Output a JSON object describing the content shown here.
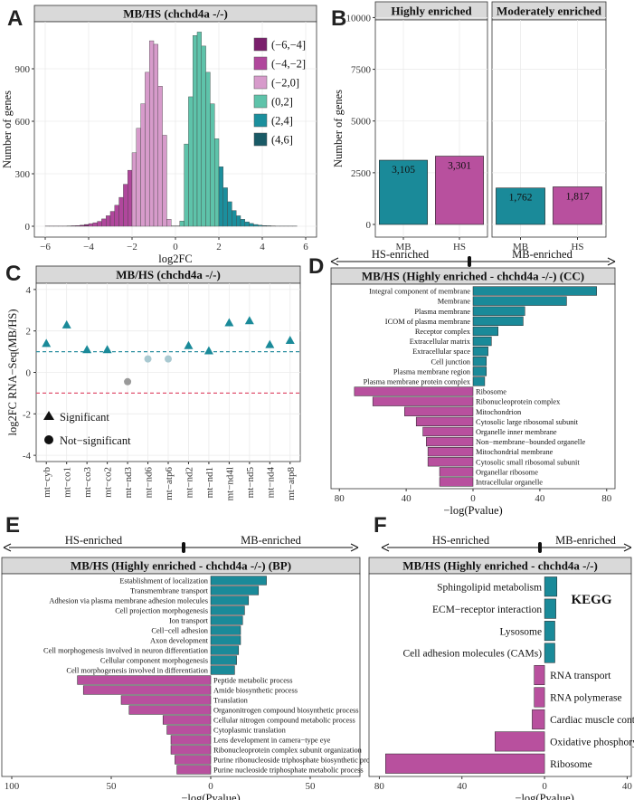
{
  "colors": {
    "neg_dark": "#7a1f6c",
    "neg_mid": "#b0479c",
    "neg_light": "#d79bcb",
    "pos_light": "#5ec3aa",
    "pos_mid": "#1b8f9d",
    "pos_dark": "#195a66",
    "mb_teal": "#1a8a99",
    "hs_magenta": "#b8509e",
    "grey_point": "#9a9a9a",
    "light_point": "#a9c9d1",
    "strip_bg": "#d9d9d9",
    "grid": "#ebebeb",
    "hline_teal": "#2a8fa0",
    "hline_red": "#e05270"
  },
  "panels": {
    "A": {
      "letter": "A"
    },
    "B": {
      "letter": "B"
    },
    "C": {
      "letter": "C"
    },
    "D": {
      "letter": "D"
    },
    "E": {
      "letter": "E"
    },
    "F": {
      "letter": "F"
    }
  },
  "arrows": {
    "hs_enriched": "HS-enriched",
    "mb_enriched": "MB-enriched"
  },
  "chart_data": [
    {
      "id": "A",
      "type": "bar",
      "title": "MB/HS (chchd4a -/-)",
      "xlabel": "log2FC",
      "ylabel": "Number of genes",
      "xlim": [
        -6.5,
        6.5
      ],
      "ylim": [
        0,
        1200
      ],
      "xticks": [
        -6,
        -4,
        -2,
        0,
        2,
        4,
        6
      ],
      "xtick_labels": [
        "−6",
        "−4",
        "−2",
        "0",
        "2",
        "4",
        "6"
      ],
      "yticks": [
        0,
        300,
        600,
        900
      ],
      "legend": [
        {
          "label": "(−6,−4]",
          "color_key": "neg_dark"
        },
        {
          "label": "(−4,−2]",
          "color_key": "neg_mid"
        },
        {
          "label": "(−2,0]",
          "color_key": "neg_light"
        },
        {
          "label": "(0,2]",
          "color_key": "pos_light"
        },
        {
          "label": "(2,4]",
          "color_key": "pos_mid"
        },
        {
          "label": "(4,6]",
          "color_key": "pos_dark"
        }
      ],
      "bin_width": 0.2,
      "bins": [
        {
          "x": -5.9,
          "v": 1
        },
        {
          "x": -5.7,
          "v": 1
        },
        {
          "x": -5.5,
          "v": 1
        },
        {
          "x": -5.3,
          "v": 1
        },
        {
          "x": -5.1,
          "v": 1
        },
        {
          "x": -4.9,
          "v": 2
        },
        {
          "x": -4.7,
          "v": 3
        },
        {
          "x": -4.5,
          "v": 4
        },
        {
          "x": -4.3,
          "v": 6
        },
        {
          "x": -4.1,
          "v": 10
        },
        {
          "x": -3.9,
          "v": 15
        },
        {
          "x": -3.7,
          "v": 20
        },
        {
          "x": -3.5,
          "v": 28
        },
        {
          "x": -3.3,
          "v": 42
        },
        {
          "x": -3.1,
          "v": 60
        },
        {
          "x": -2.9,
          "v": 85
        },
        {
          "x": -2.7,
          "v": 120
        },
        {
          "x": -2.5,
          "v": 165
        },
        {
          "x": -2.3,
          "v": 240
        },
        {
          "x": -2.1,
          "v": 320
        },
        {
          "x": -1.9,
          "v": 420
        },
        {
          "x": -1.7,
          "v": 560
        },
        {
          "x": -1.5,
          "v": 700
        },
        {
          "x": -1.3,
          "v": 880
        },
        {
          "x": -1.1,
          "v": 1060
        },
        {
          "x": -0.9,
          "v": 1040
        },
        {
          "x": -0.7,
          "v": 800
        },
        {
          "x": -0.5,
          "v": 520
        },
        {
          "x": -0.3,
          "v": 40
        },
        {
          "x": -0.1,
          "v": 2
        },
        {
          "x": 0.1,
          "v": 2
        },
        {
          "x": 0.3,
          "v": 30
        },
        {
          "x": 0.5,
          "v": 470
        },
        {
          "x": 0.7,
          "v": 740
        },
        {
          "x": 0.9,
          "v": 1090
        },
        {
          "x": 1.1,
          "v": 1110
        },
        {
          "x": 1.3,
          "v": 1030
        },
        {
          "x": 1.5,
          "v": 880
        },
        {
          "x": 1.7,
          "v": 700
        },
        {
          "x": 1.9,
          "v": 500
        },
        {
          "x": 2.1,
          "v": 340
        },
        {
          "x": 2.3,
          "v": 220
        },
        {
          "x": 2.5,
          "v": 140
        },
        {
          "x": 2.7,
          "v": 90
        },
        {
          "x": 2.9,
          "v": 60
        },
        {
          "x": 3.1,
          "v": 40
        },
        {
          "x": 3.3,
          "v": 25
        },
        {
          "x": 3.5,
          "v": 16
        },
        {
          "x": 3.7,
          "v": 10
        },
        {
          "x": 3.9,
          "v": 6
        },
        {
          "x": 4.1,
          "v": 4
        },
        {
          "x": 4.3,
          "v": 3
        },
        {
          "x": 4.5,
          "v": 2
        },
        {
          "x": 4.7,
          "v": 1
        },
        {
          "x": 4.9,
          "v": 1
        },
        {
          "x": 5.1,
          "v": 1
        },
        {
          "x": 5.3,
          "v": 1
        },
        {
          "x": 5.5,
          "v": 1
        }
      ]
    },
    {
      "id": "B",
      "type": "bar",
      "ylabel": "Number of genes",
      "ylim": [
        0,
        10500
      ],
      "yticks": [
        0,
        2500,
        5000,
        7500,
        10000
      ],
      "facets": [
        {
          "title": "Highly enriched",
          "categories": [
            "MB",
            "HS"
          ],
          "values": [
            3105,
            3301
          ],
          "labels": [
            "3,105",
            "3,301"
          ]
        },
        {
          "title": "Moderately enriched",
          "categories": [
            "MB",
            "HS"
          ],
          "values": [
            1762,
            1817
          ],
          "labels": [
            "1,762",
            "1,817"
          ]
        }
      ]
    },
    {
      "id": "C",
      "type": "scatter",
      "title": "MB/HS (chchd4a -/-)",
      "ylabel": "log2FC RNA−Seq(MB/HS)",
      "ylim": [
        -4.3,
        4.3
      ],
      "yticks": [
        -4,
        -2,
        0,
        2,
        4
      ],
      "hlines": [
        1,
        -1
      ],
      "categories": [
        "mt−cyb",
        "mt−co1",
        "mt−co3",
        "mt−co2",
        "mt−nd3",
        "mt−nd6",
        "mt−atp6",
        "mt−nd2",
        "mt−nd1",
        "mt−nd4l",
        "mt−nd5",
        "mt−nd4",
        "mt−atp8"
      ],
      "values": [
        1.4,
        2.3,
        1.1,
        1.1,
        -0.45,
        0.65,
        0.65,
        1.3,
        1.05,
        2.4,
        2.5,
        1.35,
        1.55
      ],
      "significant": [
        true,
        true,
        true,
        true,
        false,
        false,
        false,
        true,
        true,
        true,
        true,
        true,
        true
      ],
      "legend": [
        "Significant",
        "Not−significant"
      ]
    },
    {
      "id": "D",
      "type": "bar",
      "orientation": "horizontal",
      "title": "MB/HS (Highly enriched - chchd4a -/-) (CC)",
      "xlabel": "−log(Pvalue)",
      "xlim": [
        -85,
        85
      ],
      "xticks": [
        -80,
        -40,
        0,
        40,
        80
      ],
      "xtick_labels": [
        "80",
        "40",
        "0",
        "40",
        "80"
      ],
      "terms": [
        {
          "name": "Integral component of membrane",
          "value": 74
        },
        {
          "name": "Membrane",
          "value": 56
        },
        {
          "name": "Plasma membrane",
          "value": 31
        },
        {
          "name": "ICOM of plasma membrane",
          "value": 30
        },
        {
          "name": "Receptor complex",
          "value": 15
        },
        {
          "name": "Extracellular matrix",
          "value": 11
        },
        {
          "name": "Extracellular space",
          "value": 9
        },
        {
          "name": "Cell junction",
          "value": 8
        },
        {
          "name": "Plasma membrane region",
          "value": 8
        },
        {
          "name": "Plasma membrane protein complex",
          "value": 7
        },
        {
          "name": "Ribosome",
          "value": -71
        },
        {
          "name": "Ribonucleoprotein complex",
          "value": -60
        },
        {
          "name": "Mitochondrion",
          "value": -41
        },
        {
          "name": "Cytosolic large ribosomal subunit",
          "value": -34
        },
        {
          "name": "Organelle inner membrane",
          "value": -30
        },
        {
          "name": "Non−membrane−bounded organelle",
          "value": -28
        },
        {
          "name": "Mitochondrial membrane",
          "value": -27
        },
        {
          "name": "Cytosolic small ribosomal subunit",
          "value": -27
        },
        {
          "name": "Organellar ribosome",
          "value": -20
        },
        {
          "name": "Intracellular organelle",
          "value": -20
        }
      ]
    },
    {
      "id": "E",
      "type": "bar",
      "orientation": "horizontal",
      "title": "MB/HS (Highly enriched - chchd4a -/-) (BP)",
      "xlabel": "−log(Pvalue)",
      "xlim": [
        -105,
        75
      ],
      "xticks": [
        -100,
        -50,
        0,
        50
      ],
      "xtick_labels": [
        "100",
        "50",
        "0",
        "50"
      ],
      "terms": [
        {
          "name": "Establishment of localization",
          "value": 28
        },
        {
          "name": "Transmembrane transport",
          "value": 24
        },
        {
          "name": "Adhesion via plasma membrane adhesion molecules",
          "value": 19
        },
        {
          "name": "Cell projection morphogenesis",
          "value": 17
        },
        {
          "name": "Ion transport",
          "value": 16
        },
        {
          "name": "Cell−cell adhesion",
          "value": 15
        },
        {
          "name": "Axon development",
          "value": 15
        },
        {
          "name": "Cell morphogenesis involved in neuron differentiation",
          "value": 14
        },
        {
          "name": "Cellular component morphogenesis",
          "value": 13
        },
        {
          "name": "Cell morphogenesis involved in differentiation",
          "value": 12
        },
        {
          "name": "Peptide metabolic process",
          "value": -67
        },
        {
          "name": "Amide biosynthetic process",
          "value": -64
        },
        {
          "name": "Translation",
          "value": -45
        },
        {
          "name": "Organonitrogen compound biosynthetic process",
          "value": -41
        },
        {
          "name": "Cellular nitrogen compound metabolic process",
          "value": -24
        },
        {
          "name": "Cytoplasmic translation",
          "value": -22
        },
        {
          "name": "Lens development in camera−type eye",
          "value": -20
        },
        {
          "name": "Ribonucleoprotein complex subunit organization",
          "value": -20
        },
        {
          "name": "Purine ribonucleoside triphosphate biosynthetic process",
          "value": -18
        },
        {
          "name": "Purine nucleoside triphosphate metabolic process",
          "value": -17
        }
      ]
    },
    {
      "id": "F",
      "type": "bar",
      "orientation": "horizontal",
      "title": "MB/HS (Highly enriched - chchd4a -/-)",
      "annotation": "KEGG",
      "xlabel": "−log(Pvalue)",
      "xlim": [
        -85,
        42
      ],
      "xticks": [
        -80,
        -40,
        0,
        40
      ],
      "xtick_labels": [
        "80",
        "40",
        "0",
        "40"
      ],
      "terms": [
        {
          "name": "Sphingolipid metabolism",
          "value": 6
        },
        {
          "name": "ECM−receptor interaction",
          "value": 5.5
        },
        {
          "name": "Lysosome",
          "value": 5
        },
        {
          "name": "Cell adhesion molecules (CAMs)",
          "value": 5
        },
        {
          "name": "RNA transport",
          "value": -5
        },
        {
          "name": "RNA polymerase",
          "value": -5
        },
        {
          "name": "Cardiac muscle contraction",
          "value": -6
        },
        {
          "name": "Oxidative phosphorylation",
          "value": -24
        },
        {
          "name": "Ribosome",
          "value": -77
        }
      ]
    }
  ]
}
